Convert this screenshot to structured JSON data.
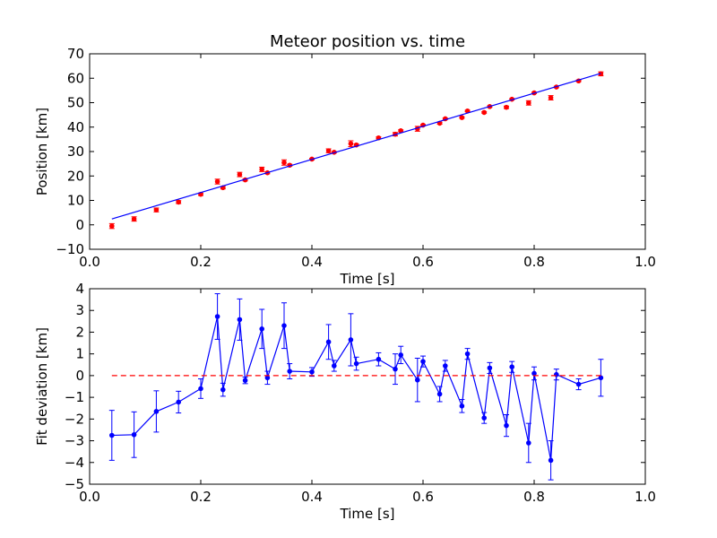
{
  "chart_data": [
    {
      "type": "scatter",
      "title": "Meteor position vs. time",
      "xlabel": "Time [s]",
      "ylabel": "Position [km]",
      "xlim": [
        0.0,
        1.0
      ],
      "ylim": [
        -10,
        70
      ],
      "xticks": [
        "0.0",
        "0.2",
        "0.4",
        "0.6",
        "0.8",
        "1.0"
      ],
      "yticks": [
        "−10",
        "0",
        "10",
        "20",
        "30",
        "40",
        "50",
        "60",
        "70"
      ],
      "grid": false,
      "series": [
        {
          "kind": "errorbar-points",
          "color": "#ff0000",
          "points": [
            {
              "x": 0.04,
              "y": -0.5,
              "err": 1.0
            },
            {
              "x": 0.08,
              "y": 2.4,
              "err": 0.9
            },
            {
              "x": 0.12,
              "y": 6.1,
              "err": 0.8
            },
            {
              "x": 0.16,
              "y": 9.3,
              "err": 0.6
            },
            {
              "x": 0.2,
              "y": 12.5,
              "err": 0.5
            },
            {
              "x": 0.23,
              "y": 17.7,
              "err": 1.0
            },
            {
              "x": 0.24,
              "y": 15.2,
              "err": 0.5
            },
            {
              "x": 0.27,
              "y": 20.6,
              "err": 0.9
            },
            {
              "x": 0.28,
              "y": 18.4,
              "err": 0.4
            },
            {
              "x": 0.31,
              "y": 22.7,
              "err": 0.9
            },
            {
              "x": 0.32,
              "y": 21.3,
              "err": 0.4
            },
            {
              "x": 0.35,
              "y": 25.5,
              "err": 1.1
            },
            {
              "x": 0.36,
              "y": 24.4,
              "err": 0.4
            },
            {
              "x": 0.4,
              "y": 26.9,
              "err": 0.3
            },
            {
              "x": 0.43,
              "y": 30.3,
              "err": 0.8
            },
            {
              "x": 0.44,
              "y": 29.7,
              "err": 0.3
            },
            {
              "x": 0.47,
              "y": 33.2,
              "err": 1.2
            },
            {
              "x": 0.48,
              "y": 32.7,
              "err": 0.4
            },
            {
              "x": 0.52,
              "y": 35.6,
              "err": 0.4
            },
            {
              "x": 0.55,
              "y": 37.1,
              "err": 0.7
            },
            {
              "x": 0.56,
              "y": 38.5,
              "err": 0.4
            },
            {
              "x": 0.59,
              "y": 39.3,
              "err": 1.0
            },
            {
              "x": 0.6,
              "y": 40.8,
              "err": 0.3
            },
            {
              "x": 0.63,
              "y": 41.6,
              "err": 0.4
            },
            {
              "x": 0.64,
              "y": 43.4,
              "err": 0.3
            },
            {
              "x": 0.67,
              "y": 43.9,
              "err": 0.3
            },
            {
              "x": 0.68,
              "y": 46.6,
              "err": 0.3
            },
            {
              "x": 0.71,
              "y": 46.0,
              "err": 0.3
            },
            {
              "x": 0.72,
              "y": 48.4,
              "err": 0.3
            },
            {
              "x": 0.75,
              "y": 48.1,
              "err": 0.5
            },
            {
              "x": 0.76,
              "y": 51.4,
              "err": 0.3
            },
            {
              "x": 0.79,
              "y": 49.9,
              "err": 0.9
            },
            {
              "x": 0.8,
              "y": 54.0,
              "err": 0.3
            },
            {
              "x": 0.83,
              "y": 52.0,
              "err": 0.9
            },
            {
              "x": 0.84,
              "y": 56.4,
              "err": 0.3
            },
            {
              "x": 0.88,
              "y": 58.9,
              "err": 0.3
            },
            {
              "x": 0.92,
              "y": 61.8,
              "err": 0.8
            }
          ]
        },
        {
          "kind": "line",
          "color": "#0000ff",
          "points": [
            {
              "x": 0.04,
              "y": 2.4
            },
            {
              "x": 0.92,
              "y": 62.0
            }
          ]
        }
      ]
    },
    {
      "type": "line",
      "title": "",
      "xlabel": "Time [s]",
      "ylabel": "Fit deviation [km]",
      "xlim": [
        0.0,
        1.0
      ],
      "ylim": [
        -5,
        4
      ],
      "xticks": [
        "0.0",
        "0.2",
        "0.4",
        "0.6",
        "0.8",
        "1.0"
      ],
      "yticks": [
        "−5",
        "−4",
        "−3",
        "−2",
        "−1",
        "0",
        "1",
        "2",
        "3",
        "4"
      ],
      "grid": false,
      "series": [
        {
          "kind": "errorbar-line",
          "color": "#0000ff",
          "points": [
            {
              "x": 0.04,
              "y": -2.75,
              "err": 1.15
            },
            {
              "x": 0.08,
              "y": -2.72,
              "err": 1.05
            },
            {
              "x": 0.12,
              "y": -1.65,
              "err": 0.95
            },
            {
              "x": 0.16,
              "y": -1.22,
              "err": 0.5
            },
            {
              "x": 0.2,
              "y": -0.6,
              "err": 0.45
            },
            {
              "x": 0.23,
              "y": 2.72,
              "err": 1.05
            },
            {
              "x": 0.24,
              "y": -0.65,
              "err": 0.3
            },
            {
              "x": 0.27,
              "y": 2.58,
              "err": 0.95
            },
            {
              "x": 0.28,
              "y": -0.22,
              "err": 0.15
            },
            {
              "x": 0.31,
              "y": 2.15,
              "err": 0.9
            },
            {
              "x": 0.32,
              "y": -0.1,
              "err": 0.3
            },
            {
              "x": 0.35,
              "y": 2.3,
              "err": 1.05
            },
            {
              "x": 0.36,
              "y": 0.2,
              "err": 0.35
            },
            {
              "x": 0.4,
              "y": 0.17,
              "err": 0.2
            },
            {
              "x": 0.43,
              "y": 1.55,
              "err": 0.8
            },
            {
              "x": 0.44,
              "y": 0.45,
              "err": 0.25
            },
            {
              "x": 0.47,
              "y": 1.65,
              "err": 1.2
            },
            {
              "x": 0.48,
              "y": 0.55,
              "err": 0.3
            },
            {
              "x": 0.52,
              "y": 0.75,
              "err": 0.3
            },
            {
              "x": 0.55,
              "y": 0.3,
              "err": 0.7
            },
            {
              "x": 0.56,
              "y": 0.95,
              "err": 0.4
            },
            {
              "x": 0.59,
              "y": -0.2,
              "err": 1.0
            },
            {
              "x": 0.6,
              "y": 0.65,
              "err": 0.25
            },
            {
              "x": 0.63,
              "y": -0.85,
              "err": 0.35
            },
            {
              "x": 0.64,
              "y": 0.45,
              "err": 0.25
            },
            {
              "x": 0.67,
              "y": -1.4,
              "err": 0.3
            },
            {
              "x": 0.68,
              "y": 1.0,
              "err": 0.25
            },
            {
              "x": 0.71,
              "y": -1.95,
              "err": 0.25
            },
            {
              "x": 0.72,
              "y": 0.35,
              "err": 0.25
            },
            {
              "x": 0.75,
              "y": -2.3,
              "err": 0.5
            },
            {
              "x": 0.76,
              "y": 0.4,
              "err": 0.25
            },
            {
              "x": 0.79,
              "y": -3.1,
              "err": 0.9
            },
            {
              "x": 0.8,
              "y": 0.1,
              "err": 0.3
            },
            {
              "x": 0.83,
              "y": -3.9,
              "err": 0.9
            },
            {
              "x": 0.84,
              "y": 0.05,
              "err": 0.25
            },
            {
              "x": 0.88,
              "y": -0.4,
              "err": 0.25
            },
            {
              "x": 0.92,
              "y": -0.1,
              "err": 0.85
            }
          ]
        },
        {
          "kind": "dashed-line",
          "color": "#ff0000",
          "points": [
            {
              "x": 0.04,
              "y": 0
            },
            {
              "x": 0.92,
              "y": 0
            }
          ]
        }
      ]
    }
  ]
}
